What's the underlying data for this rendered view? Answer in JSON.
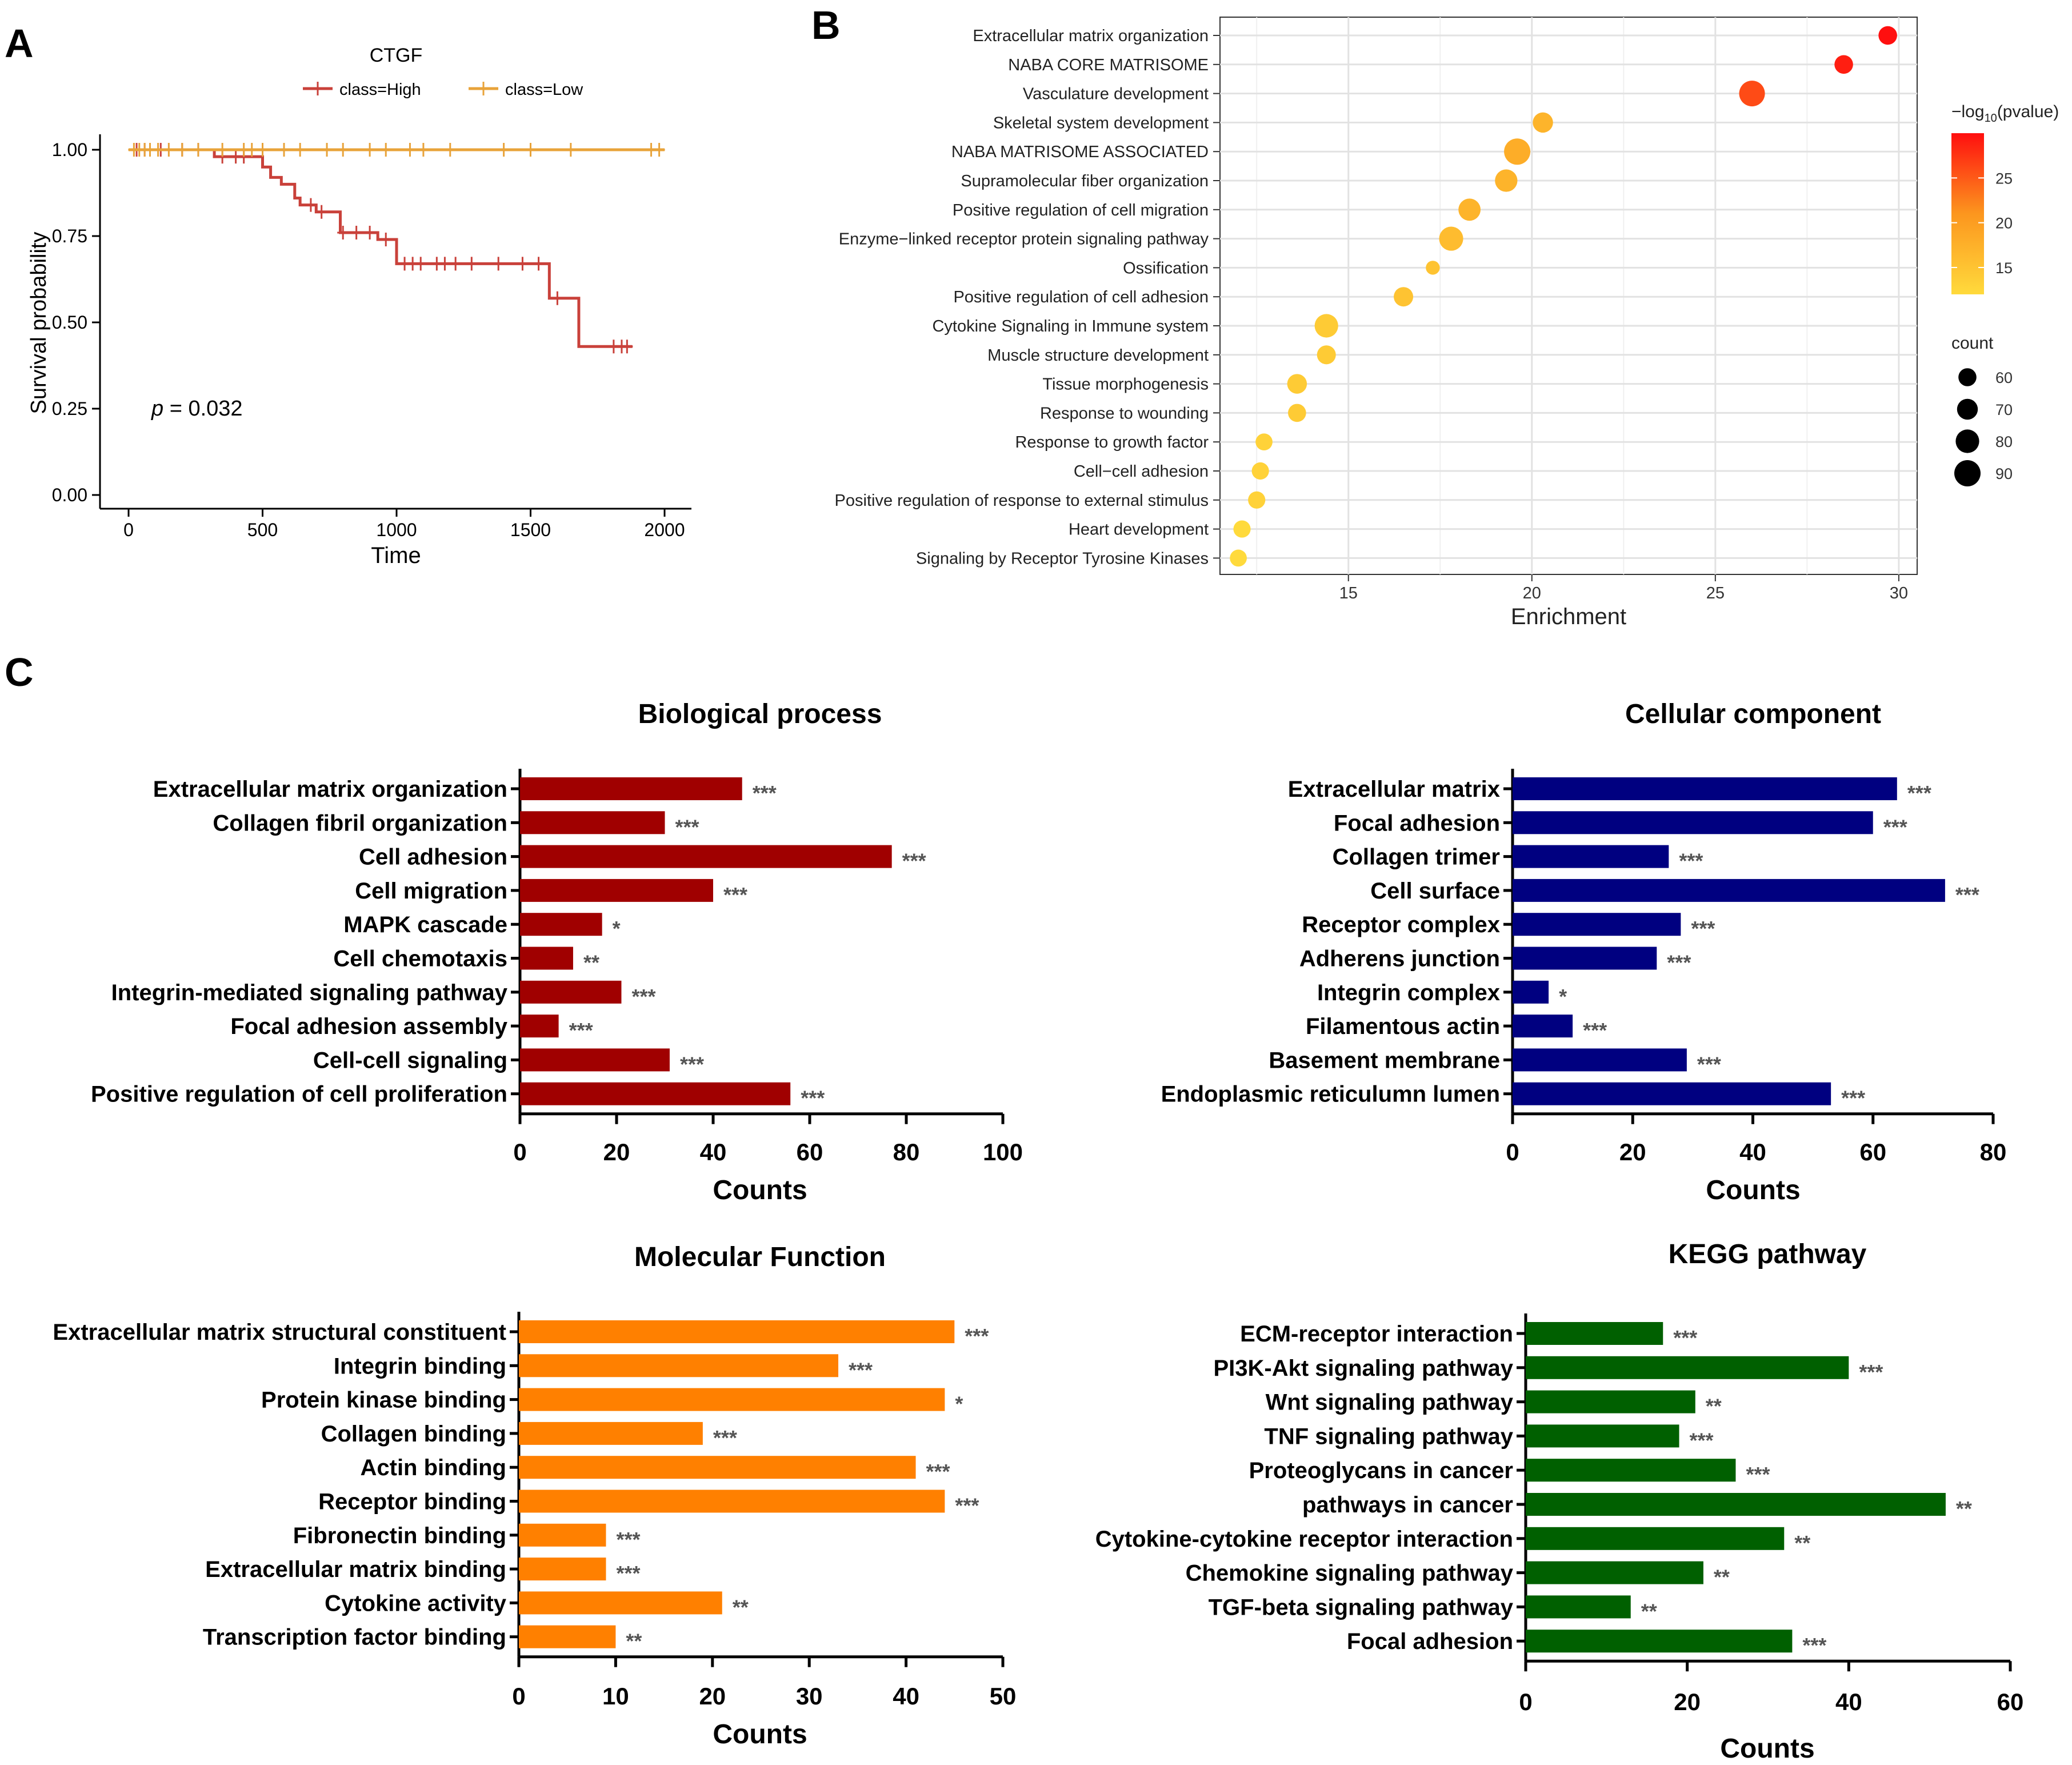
{
  "chart_data": [
    {
      "panel": "A",
      "type": "line",
      "subtype": "kaplan-meier",
      "legend_title": "CTGF",
      "xlabel": "Time",
      "ylabel": "Survival probability",
      "xlim": [
        0,
        2000
      ],
      "ylim": [
        0,
        1
      ],
      "xticks": [
        0,
        500,
        1000,
        1500,
        2000
      ],
      "yticks": [
        "0.00",
        "0.25",
        "0.50",
        "0.75",
        "1.00"
      ],
      "annotation": {
        "p_label": "p",
        "p_text": " = 0.032"
      },
      "series": [
        {
          "name": "class=High",
          "color": "#c9413a",
          "x": [
            0,
            250,
            320,
            460,
            500,
            530,
            570,
            620,
            640,
            700,
            790,
            930,
            1000,
            1550,
            1570,
            1680,
            1880
          ],
          "y": [
            1.0,
            1.0,
            0.98,
            0.98,
            0.95,
            0.92,
            0.9,
            0.86,
            0.84,
            0.82,
            0.76,
            0.74,
            0.67,
            0.67,
            0.57,
            0.43,
            0.43
          ],
          "censor_x": [
            30,
            60,
            120,
            200,
            260,
            350,
            400,
            430,
            680,
            720,
            800,
            850,
            900,
            960,
            1030,
            1060,
            1090,
            1150,
            1180,
            1220,
            1280,
            1380,
            1470,
            1530,
            1600,
            1810,
            1840,
            1860
          ]
        },
        {
          "name": "class=Low",
          "color": "#e8a33a",
          "x": [
            0,
            2000
          ],
          "y": [
            1.0,
            1.0
          ],
          "censor_x": [
            20,
            40,
            60,
            80,
            110,
            150,
            200,
            260,
            350,
            430,
            460,
            500,
            580,
            640,
            740,
            800,
            900,
            960,
            1050,
            1100,
            1200,
            1400,
            1500,
            1650,
            1950,
            1980
          ]
        }
      ]
    },
    {
      "panel": "B",
      "type": "scatter",
      "subtype": "bubble",
      "xlabel": "Enrichment",
      "xlim": [
        11.5,
        30.5
      ],
      "xticks": [
        15,
        20,
        25,
        30
      ],
      "color_legend_title": "−log",
      "color_legend_sub": "10",
      "color_legend_suffix": "(pvalue)",
      "color_ticks": [
        25,
        20,
        15
      ],
      "color_range": [
        12,
        30
      ],
      "size_legend_title": "count",
      "size_ticks": [
        60,
        70,
        80,
        90
      ],
      "size_range": [
        40,
        90
      ],
      "terms": [
        "Extracellular matrix organization",
        "NABA CORE MATRISOME",
        "Vasculature development",
        "Skeletal system development",
        "NABA MATRISOME ASSOCIATED",
        "Supramolecular fiber organization",
        "Positive regulation of cell migration",
        "Enzyme−linked receptor protein signaling pathway",
        "Ossification",
        "Positive regulation of cell adhesion",
        "Cytokine Signaling in Immune system",
        "Muscle structure development",
        "Tissue morphogenesis",
        "Response to wounding",
        "Response to growth factor",
        "Cell−cell adhesion",
        "Positive regulation of response to external stimulus",
        "Heart development",
        "Signaling by Receptor Tyrosine Kinases"
      ],
      "enrichment": [
        29.7,
        28.5,
        26.0,
        20.3,
        19.6,
        19.3,
        18.3,
        17.8,
        17.3,
        16.5,
        14.4,
        14.4,
        13.6,
        13.6,
        12.7,
        12.6,
        12.5,
        12.1,
        12.0
      ],
      "neglog10p": [
        30,
        29,
        26,
        17,
        18,
        17,
        17,
        16,
        15,
        15,
        14,
        14,
        14,
        14,
        13,
        13,
        13,
        12,
        12
      ],
      "count": [
        62,
        62,
        88,
        68,
        90,
        76,
        75,
        82,
        45,
        65,
        80,
        63,
        66,
        60,
        56,
        57,
        57,
        57,
        56
      ]
    },
    {
      "panel": "C",
      "type": "bar",
      "orientation": "horizontal",
      "title": "Biological process",
      "xlabel": "Counts",
      "xlim": [
        0,
        100
      ],
      "xticks": [
        0,
        20,
        40,
        60,
        80,
        100
      ],
      "color": "#a00000",
      "categories": [
        "Extracellular matrix organization",
        "Collagen fibril organization",
        "Cell adhesion",
        "Cell migration",
        "MAPK cascade",
        "Cell chemotaxis",
        "Integrin-mediated signaling pathway",
        "Focal adhesion assembly",
        "Cell-cell signaling",
        "Positive regulation of cell proliferation"
      ],
      "values": [
        46,
        30,
        77,
        40,
        17,
        11,
        21,
        8,
        31,
        56
      ],
      "significance": [
        "***",
        "***",
        "***",
        "***",
        "*",
        "**",
        "***",
        "***",
        "***",
        "***"
      ]
    },
    {
      "panel": "C",
      "type": "bar",
      "orientation": "horizontal",
      "title": "Cellular component",
      "xlabel": "Counts",
      "xlim": [
        0,
        80
      ],
      "xticks": [
        0,
        20,
        40,
        60,
        80
      ],
      "color": "#000080",
      "categories": [
        "Extracellular matrix",
        "Focal adhesion",
        "Collagen trimer",
        "Cell surface",
        "Receptor complex",
        "Adherens junction",
        "Integrin complex",
        "Filamentous actin",
        "Basement membrane",
        "Endoplasmic reticulumn lumen"
      ],
      "values": [
        64,
        60,
        26,
        72,
        28,
        24,
        6,
        10,
        29,
        53
      ],
      "significance": [
        "***",
        "***",
        "***",
        "***",
        "***",
        "***",
        "*",
        "***",
        "***",
        "***"
      ]
    },
    {
      "panel": "C",
      "type": "bar",
      "orientation": "horizontal",
      "title": "Molecular Function",
      "xlabel": "Counts",
      "xlim": [
        0,
        50
      ],
      "xticks": [
        0,
        10,
        20,
        30,
        40,
        50
      ],
      "color": "#ff8000",
      "categories": [
        "Extracellular matrix structural constituent",
        "Integrin binding",
        "Protein kinase binding",
        "Collagen binding",
        "Actin binding",
        "Receptor binding",
        "Fibronectin binding",
        "Extracellular matrix binding",
        "Cytokine activity",
        "Transcription factor binding"
      ],
      "values": [
        45,
        33,
        44,
        19,
        41,
        44,
        9,
        9,
        21,
        10
      ],
      "significance": [
        "***",
        "***",
        "*",
        "***",
        "***",
        "***",
        "***",
        "***",
        "**",
        "**"
      ]
    },
    {
      "panel": "C",
      "type": "bar",
      "orientation": "horizontal",
      "title": "KEGG pathway",
      "xlabel": "Counts",
      "xlim": [
        0,
        60
      ],
      "xticks": [
        0,
        20,
        40,
        60
      ],
      "color": "#006000",
      "categories": [
        "ECM-receptor interaction",
        "PI3K-Akt signaling pathway",
        "Wnt signaling pathway",
        "TNF signaling pathway",
        "Proteoglycans in cancer",
        "pathways in cancer",
        "Cytokine-cytokine receptor interaction",
        "Chemokine signaling pathway",
        "TGF-beta signaling pathway",
        "Focal adhesion"
      ],
      "values": [
        17,
        40,
        21,
        19,
        26,
        52,
        32,
        22,
        13,
        33
      ],
      "significance": [
        "***",
        "***",
        "**",
        "***",
        "***",
        "**",
        "**",
        "**",
        "**",
        "***"
      ]
    }
  ],
  "panel_labels": [
    "A",
    "B",
    "C"
  ]
}
